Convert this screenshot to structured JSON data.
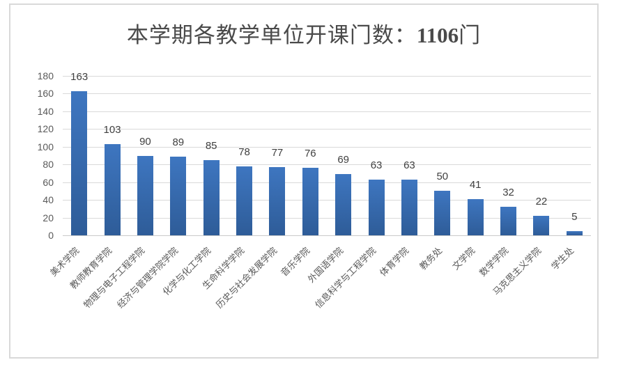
{
  "title": {
    "prefix": "本学期各教学单位开课门数：",
    "highlight": "1106",
    "suffix": "门"
  },
  "chart_data": {
    "type": "bar",
    "title": "本学期各教学单位开课门数：1106门",
    "categories": [
      "美术学院",
      "教师教育学院",
      "物理与电子工程学院",
      "经济与管理学院学院",
      "化学与化工学院",
      "生命科学学院",
      "历史与社会发展学院",
      "音乐学院",
      "外国语学院",
      "信息科学与工程学院",
      "体育学院",
      "教务处",
      "文学院",
      "数学学院",
      "马克思主义学院",
      "学生处"
    ],
    "values": [
      163,
      103,
      90,
      89,
      85,
      78,
      77,
      76,
      69,
      63,
      63,
      50,
      41,
      32,
      22,
      5
    ],
    "total": 1106,
    "xlabel": "",
    "ylabel": "",
    "ylim": [
      0,
      180
    ],
    "yticks": [
      0,
      20,
      40,
      60,
      80,
      100,
      120,
      140,
      160,
      180
    ],
    "grid": true,
    "legend": false,
    "x_label_rotation_deg": 45,
    "colors": {
      "bar_gradient_top": "#3e76c0",
      "bar_gradient_bottom": "#2e5c98",
      "gridline": "#d9d9d9",
      "axis_baseline": "#c9c9c9",
      "card_border": "#d9d9d9",
      "title_text": "#4a4a4a",
      "axis_text": "#595959",
      "value_label_text": "#3f3f3f"
    }
  }
}
